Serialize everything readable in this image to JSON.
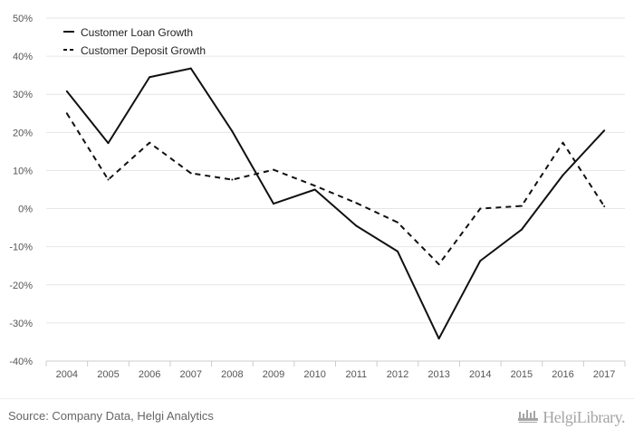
{
  "chart_data": {
    "type": "line",
    "categories": [
      "2004",
      "2005",
      "2006",
      "2007",
      "2008",
      "2009",
      "2010",
      "2011",
      "2012",
      "2013",
      "2014",
      "2015",
      "2016",
      "2017"
    ],
    "series": [
      {
        "name": "Customer Loan Growth",
        "style": "solid",
        "values": [
          30.8,
          17.2,
          34.5,
          36.8,
          20.3,
          1.3,
          5.0,
          -4.5,
          -11.2,
          -34.1,
          -13.7,
          -5.5,
          8.8,
          20.5
        ]
      },
      {
        "name": "Customer Deposit Growth",
        "style": "dashed",
        "values": [
          25.0,
          7.6,
          17.3,
          9.3,
          7.6,
          10.2,
          6.0,
          1.5,
          -3.6,
          -14.6,
          0.0,
          0.7,
          17.3,
          0.6
        ]
      }
    ],
    "yticks": [
      "50%",
      "40%",
      "30%",
      "20%",
      "10%",
      "0%",
      "-10%",
      "-20%",
      "-30%",
      "-40%"
    ],
    "ylim": [
      -40,
      50
    ],
    "grid": true,
    "legend_position": "top-left",
    "colors": {
      "line": "#111111",
      "grid": "#e6e6e6",
      "axis": "#cccccc",
      "tick_text": "#555555"
    }
  },
  "footer": {
    "source": "Source: Company Data, Helgi Analytics",
    "brand": "HelgiLibrary.",
    "brand_icon": "library-logo-icon"
  }
}
